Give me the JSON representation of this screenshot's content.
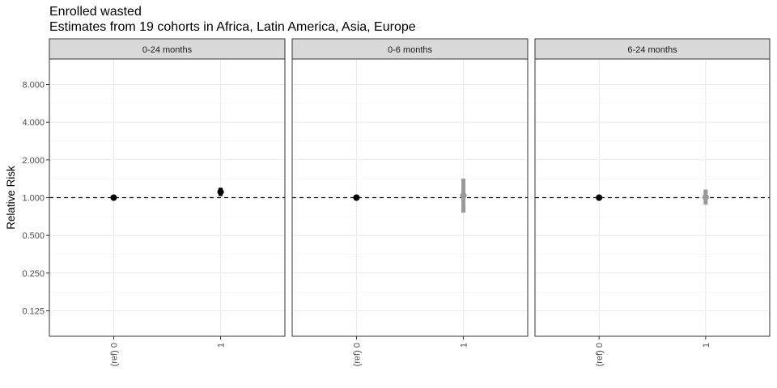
{
  "chart_data": {
    "type": "scatter",
    "title": "Enrolled wasted",
    "subtitle": "Estimates from 19 cohorts in Africa, Latin America, Asia, Europe",
    "ylabel": "Relative Risk",
    "y_scale": "log",
    "y_ticks": [
      "0.125",
      "0.250",
      "0.500",
      "1.000",
      "2.000",
      "4.000",
      "8.000"
    ],
    "ylim": [
      0.09,
      9.0
    ],
    "categories": [
      "(ref) 0",
      "1"
    ],
    "reference_line": 1.0,
    "panels": [
      {
        "label": "0-24 months",
        "points": [
          {
            "x": "(ref) 0",
            "rr": 1.0,
            "lower": 1.0,
            "upper": 1.0,
            "color": "#000000"
          },
          {
            "x": "1",
            "rr": 1.11,
            "lower": 1.03,
            "upper": 1.2,
            "color": "#000000"
          }
        ]
      },
      {
        "label": "0-6 months",
        "points": [
          {
            "x": "(ref) 0",
            "rr": 1.0,
            "lower": 1.0,
            "upper": 1.0,
            "color": "#000000"
          },
          {
            "x": "1",
            "rr": 1.04,
            "lower": 0.76,
            "upper": 1.42,
            "color": "#999999"
          }
        ]
      },
      {
        "label": "6-24 months",
        "points": [
          {
            "x": "(ref) 0",
            "rr": 1.0,
            "lower": 1.0,
            "upper": 1.0,
            "color": "#000000"
          },
          {
            "x": "1",
            "rr": 1.01,
            "lower": 0.88,
            "upper": 1.16,
            "color": "#999999"
          }
        ]
      }
    ]
  }
}
